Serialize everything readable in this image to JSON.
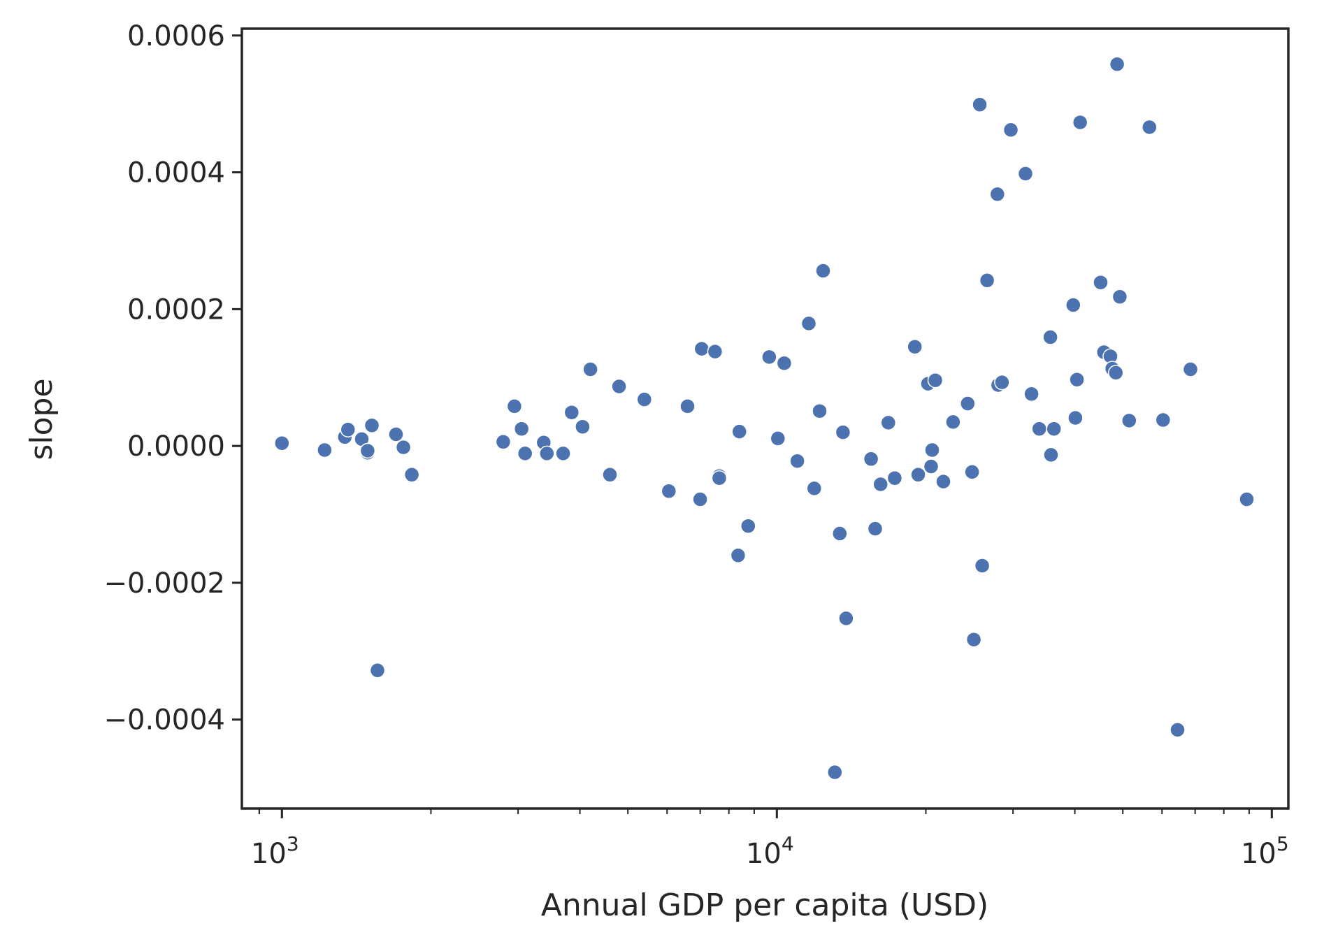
{
  "chart_data": {
    "type": "scatter",
    "title": "",
    "xlabel": "Annual GDP per capita (USD)",
    "ylabel": "slope",
    "xscale": "log",
    "xlim": [
      830,
      108000
    ],
    "ylim": [
      -0.00053,
      0.00061
    ],
    "x_ticks": [
      {
        "base": "10",
        "exp": "3",
        "value": 1000
      },
      {
        "base": "10",
        "exp": "4",
        "value": 10000
      },
      {
        "base": "10",
        "exp": "5",
        "value": 100000
      }
    ],
    "y_ticks": [
      {
        "label": "0.0006",
        "value": 0.0006
      },
      {
        "label": "0.0004",
        "value": 0.0004
      },
      {
        "label": "0.0002",
        "value": 0.0002
      },
      {
        "label": "0.0000",
        "value": 0.0
      },
      {
        "label": "−0.0002",
        "value": -0.0002
      },
      {
        "label": "−0.0004",
        "value": -0.0004
      }
    ],
    "grid": false,
    "marker_color": "#4c72b0",
    "marker_edge_color": "#ffffff",
    "points": [
      {
        "x": 1000,
        "y": 4e-06
      },
      {
        "x": 1220,
        "y": -6e-06
      },
      {
        "x": 1340,
        "y": 1.3e-05
      },
      {
        "x": 1360,
        "y": 2.4e-05
      },
      {
        "x": 1450,
        "y": 1e-05
      },
      {
        "x": 1490,
        "y": -1e-05
      },
      {
        "x": 1490,
        "y": -7e-06
      },
      {
        "x": 1520,
        "y": 3e-05
      },
      {
        "x": 1560,
        "y": -0.000328
      },
      {
        "x": 1700,
        "y": 1.7e-05
      },
      {
        "x": 1760,
        "y": -2e-06
      },
      {
        "x": 1830,
        "y": -4.2e-05
      },
      {
        "x": 2800,
        "y": 6e-06
      },
      {
        "x": 2950,
        "y": 5.8e-05
      },
      {
        "x": 3050,
        "y": 2.5e-05
      },
      {
        "x": 3100,
        "y": -1.1e-05
      },
      {
        "x": 3380,
        "y": 5e-06
      },
      {
        "x": 3430,
        "y": -1.1e-05
      },
      {
        "x": 3700,
        "y": -1.1e-05
      },
      {
        "x": 3850,
        "y": 4.9e-05
      },
      {
        "x": 4050,
        "y": 2.8e-05
      },
      {
        "x": 4200,
        "y": 0.000112
      },
      {
        "x": 4600,
        "y": -4.2e-05
      },
      {
        "x": 4800,
        "y": 8.7e-05
      },
      {
        "x": 5400,
        "y": 6.8e-05
      },
      {
        "x": 6050,
        "y": -6.6e-05
      },
      {
        "x": 6600,
        "y": 5.8e-05
      },
      {
        "x": 7000,
        "y": -7.8e-05
      },
      {
        "x": 7050,
        "y": 0.000142
      },
      {
        "x": 7500,
        "y": 0.000138
      },
      {
        "x": 7650,
        "y": -4.4e-05
      },
      {
        "x": 7650,
        "y": -4.7e-05
      },
      {
        "x": 8350,
        "y": -0.00016
      },
      {
        "x": 8400,
        "y": 2.1e-05
      },
      {
        "x": 8750,
        "y": -0.000117
      },
      {
        "x": 9650,
        "y": 0.00013
      },
      {
        "x": 10050,
        "y": 1.1e-05
      },
      {
        "x": 10350,
        "y": 0.000121
      },
      {
        "x": 11000,
        "y": -2.2e-05
      },
      {
        "x": 11600,
        "y": 0.000179
      },
      {
        "x": 11900,
        "y": -6.2e-05
      },
      {
        "x": 12200,
        "y": 5.1e-05
      },
      {
        "x": 12400,
        "y": 0.000256
      },
      {
        "x": 13100,
        "y": -0.000477
      },
      {
        "x": 13400,
        "y": -0.000128
      },
      {
        "x": 13600,
        "y": 2e-05
      },
      {
        "x": 13800,
        "y": -0.000252
      },
      {
        "x": 15500,
        "y": -1.9e-05
      },
      {
        "x": 15800,
        "y": -0.000121
      },
      {
        "x": 16200,
        "y": -5.6e-05
      },
      {
        "x": 16800,
        "y": 3.4e-05
      },
      {
        "x": 17300,
        "y": -4.7e-05
      },
      {
        "x": 19000,
        "y": 0.000145
      },
      {
        "x": 19300,
        "y": -4.2e-05
      },
      {
        "x": 20200,
        "y": 9.1e-05
      },
      {
        "x": 20500,
        "y": -3e-05
      },
      {
        "x": 20600,
        "y": -6e-06
      },
      {
        "x": 20900,
        "y": 9.6e-05
      },
      {
        "x": 21700,
        "y": -5.2e-05
      },
      {
        "x": 22700,
        "y": 3.5e-05
      },
      {
        "x": 24300,
        "y": 6.2e-05
      },
      {
        "x": 24800,
        "y": -3.8e-05
      },
      {
        "x": 25000,
        "y": -0.000283
      },
      {
        "x": 25700,
        "y": 0.000499
      },
      {
        "x": 26000,
        "y": -0.000175
      },
      {
        "x": 26600,
        "y": 0.000242
      },
      {
        "x": 27900,
        "y": 0.000368
      },
      {
        "x": 28000,
        "y": 8.9e-05
      },
      {
        "x": 28500,
        "y": 9.3e-05
      },
      {
        "x": 29700,
        "y": 0.000462
      },
      {
        "x": 31800,
        "y": 0.000398
      },
      {
        "x": 32700,
        "y": 7.6e-05
      },
      {
        "x": 33900,
        "y": 2.5e-05
      },
      {
        "x": 35700,
        "y": 0.000159
      },
      {
        "x": 35800,
        "y": -1.3e-05
      },
      {
        "x": 36300,
        "y": 2.5e-05
      },
      {
        "x": 39700,
        "y": 0.000206
      },
      {
        "x": 40100,
        "y": 4.1e-05
      },
      {
        "x": 40400,
        "y": 9.7e-05
      },
      {
        "x": 41000,
        "y": 0.000473
      },
      {
        "x": 45100,
        "y": 0.000239
      },
      {
        "x": 45800,
        "y": 0.000137
      },
      {
        "x": 47200,
        "y": 0.000131
      },
      {
        "x": 47600,
        "y": 0.000113
      },
      {
        "x": 48400,
        "y": 0.000107
      },
      {
        "x": 48700,
        "y": 0.000558
      },
      {
        "x": 49300,
        "y": 0.000218
      },
      {
        "x": 51500,
        "y": 3.7e-05
      },
      {
        "x": 56600,
        "y": 0.000466
      },
      {
        "x": 60300,
        "y": 3.8e-05
      },
      {
        "x": 64500,
        "y": -0.000415
      },
      {
        "x": 68500,
        "y": 0.000112
      },
      {
        "x": 89000,
        "y": -7.8e-05
      }
    ]
  }
}
